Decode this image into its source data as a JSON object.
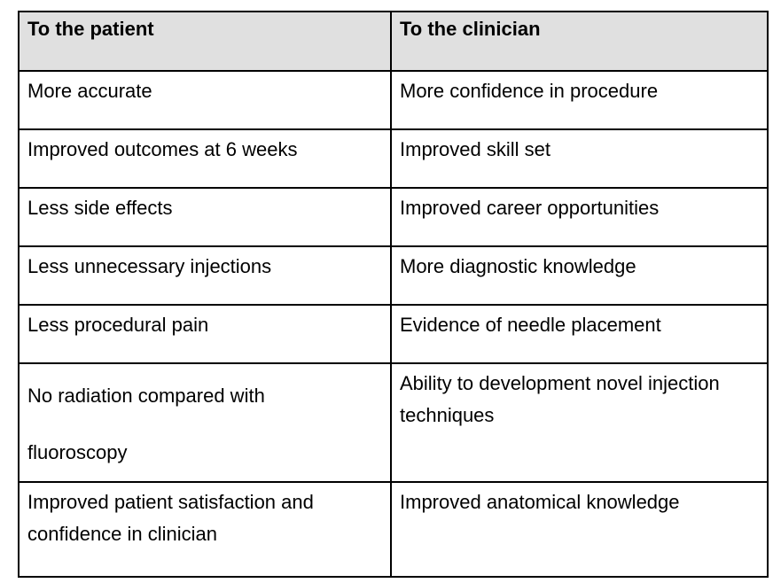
{
  "table": {
    "columns": [
      "To the patient",
      "To the clinician"
    ],
    "rows": [
      {
        "patient": "More accurate",
        "clinician": "More confidence in procedure"
      },
      {
        "patient": "Improved outcomes at 6 weeks",
        "clinician": "Improved skill set"
      },
      {
        "patient": "Less side effects",
        "clinician": "Improved career opportunities"
      },
      {
        "patient": "Less unnecessary injections",
        "clinician": "More diagnostic knowledge"
      },
      {
        "patient": "Less procedural pain",
        "clinician": "Evidence of needle placement"
      },
      {
        "patient": "No radiation compared with\nfluoroscopy",
        "clinician": "Ability to development novel injection\ntechniques"
      },
      {
        "patient": "Improved patient satisfaction and\nconfidence in clinician",
        "clinician": "Improved anatomical knowledge"
      }
    ],
    "colors": {
      "header_bg": "#e0e0e0",
      "border": "#000000",
      "text": "#000000"
    }
  }
}
